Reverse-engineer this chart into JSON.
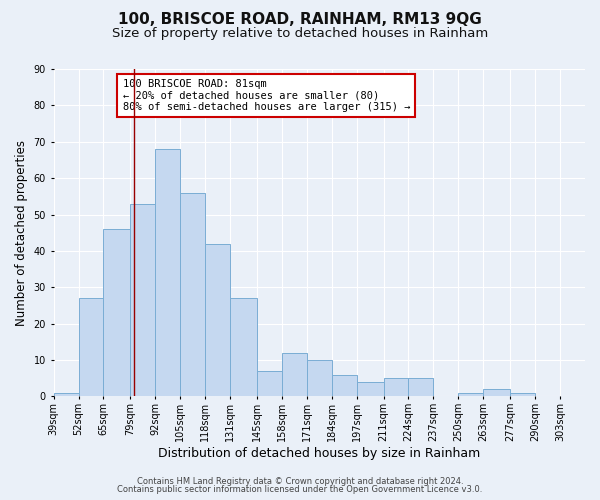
{
  "title": "100, BRISCOE ROAD, RAINHAM, RM13 9QG",
  "subtitle": "Size of property relative to detached houses in Rainham",
  "xlabel": "Distribution of detached houses by size in Rainham",
  "ylabel": "Number of detached properties",
  "bar_color": "#c5d8f0",
  "bar_edgecolor": "#7aadd4",
  "background_color": "#eaf0f8",
  "grid_color": "#ffffff",
  "annotation_box_color": "#cc0000",
  "vline_color": "#990000",
  "vline_x": 81,
  "bin_edges": [
    39,
    52,
    65,
    79,
    92,
    105,
    118,
    131,
    145,
    158,
    171,
    184,
    197,
    211,
    224,
    237,
    250,
    263,
    277,
    290,
    303
  ],
  "counts": [
    1,
    27,
    46,
    53,
    68,
    56,
    42,
    27,
    7,
    12,
    10,
    6,
    4,
    5,
    5,
    0,
    1,
    2,
    1,
    0
  ],
  "ylim": [
    0,
    90
  ],
  "yticks": [
    0,
    10,
    20,
    30,
    40,
    50,
    60,
    70,
    80,
    90
  ],
  "bin_labels": [
    "39sqm",
    "52sqm",
    "65sqm",
    "79sqm",
    "92sqm",
    "105sqm",
    "118sqm",
    "131sqm",
    "145sqm",
    "158sqm",
    "171sqm",
    "184sqm",
    "197sqm",
    "211sqm",
    "224sqm",
    "237sqm",
    "250sqm",
    "263sqm",
    "277sqm",
    "290sqm",
    "303sqm"
  ],
  "annotation_text": "100 BRISCOE ROAD: 81sqm\n← 20% of detached houses are smaller (80)\n80% of semi-detached houses are larger (315) →",
  "footer_line1": "Contains HM Land Registry data © Crown copyright and database right 2024.",
  "footer_line2": "Contains public sector information licensed under the Open Government Licence v3.0.",
  "title_fontsize": 11,
  "subtitle_fontsize": 9.5,
  "xlabel_fontsize": 9,
  "ylabel_fontsize": 8.5,
  "tick_fontsize": 7,
  "annotation_fontsize": 7.5,
  "footer_fontsize": 6
}
